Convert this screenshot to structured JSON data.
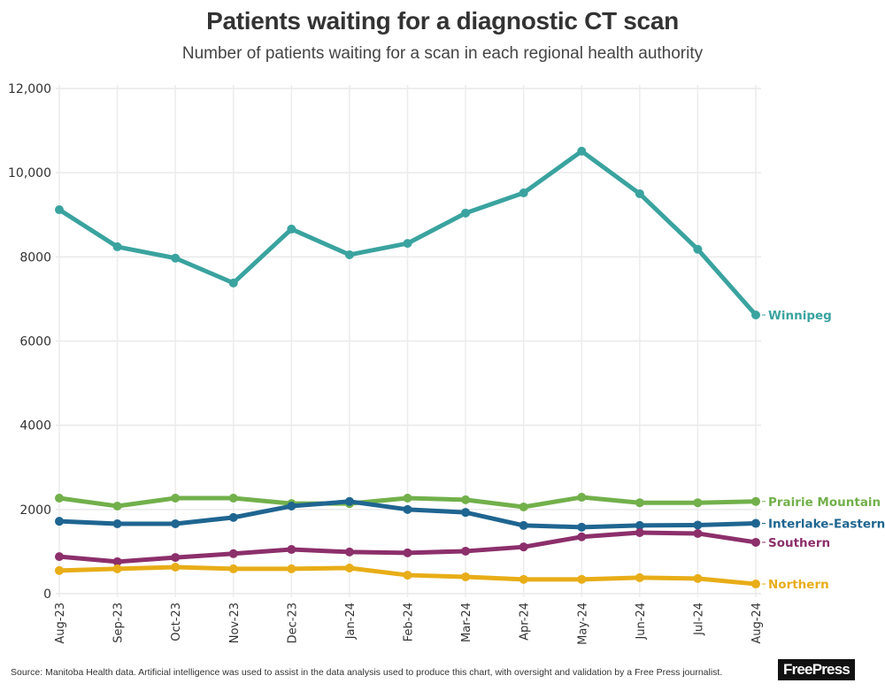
{
  "header": {
    "title": "Patients waiting for a diagnostic CT scan",
    "subtitle": "Number of patients waiting for a scan in each regional health authority"
  },
  "footer": {
    "source": "Source: Manitoba Health data. Artificial intelligence was used to assist in the data analysis used to produce this chart, with oversight and validation by a Free Press journalist.",
    "logo": "FreePress"
  },
  "chart_data": {
    "type": "line",
    "title": "Patients waiting for a diagnostic CT scan",
    "subtitle": "Number of patients waiting for a scan in each regional health authority",
    "xlabel": "",
    "ylabel": "",
    "ylim": [
      0,
      12000
    ],
    "yticks": [
      0,
      2000,
      4000,
      6000,
      8000,
      10000,
      12000
    ],
    "ytick_labels": [
      "0",
      "2000",
      "4000",
      "6000",
      "8000",
      "10,000",
      "12,000"
    ],
    "grid": true,
    "legend": "direct-labels-right",
    "categories": [
      "Aug-23",
      "Sep-23",
      "Oct-23",
      "Nov-23",
      "Dec-23",
      "Jan-24",
      "Feb-24",
      "Mar-24",
      "Apr-24",
      "May-24",
      "Jun-24",
      "Jul-24",
      "Aug-24"
    ],
    "series": [
      {
        "name": "Winnipeg",
        "color": "#3aa39f",
        "values": [
          9120,
          8240,
          7970,
          7380,
          8660,
          8050,
          8320,
          9040,
          9520,
          10510,
          9500,
          8180,
          6620
        ]
      },
      {
        "name": "Prairie Mountain",
        "color": "#72b04b",
        "values": [
          2270,
          2080,
          2270,
          2270,
          2140,
          2140,
          2270,
          2230,
          2060,
          2290,
          2160,
          2160,
          2190
        ]
      },
      {
        "name": "Interlake-Eastern",
        "color": "#1f6591",
        "values": [
          1720,
          1660,
          1660,
          1810,
          2080,
          2190,
          2000,
          1930,
          1620,
          1580,
          1620,
          1630,
          1670
        ]
      },
      {
        "name": "Southern",
        "color": "#8c2f6b",
        "values": [
          880,
          760,
          860,
          950,
          1050,
          990,
          970,
          1010,
          1110,
          1350,
          1450,
          1430,
          1220
        ]
      },
      {
        "name": "Northern",
        "color": "#e8ad17",
        "values": [
          550,
          590,
          630,
          590,
          590,
          610,
          440,
          400,
          340,
          340,
          380,
          360,
          230
        ]
      }
    ]
  }
}
